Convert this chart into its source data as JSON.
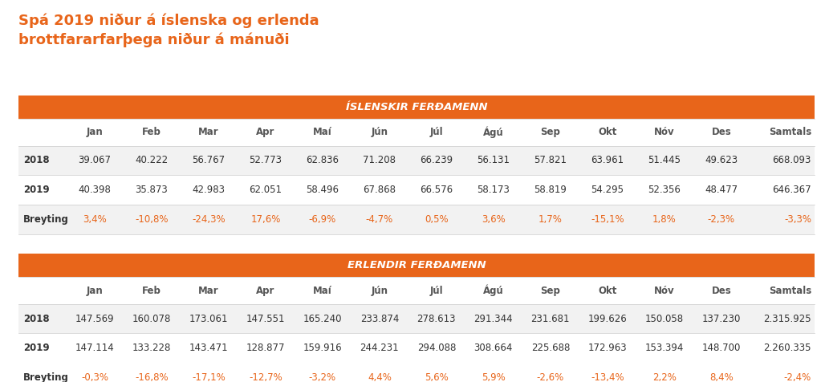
{
  "title_line1": "Spá 2019 niður á íslenska og erlenda",
  "title_line2": "brottfararfarþega niður á mánuði",
  "title_color": "#E8651A",
  "section1_header": "ÍSLENSKIR FERÐAMENN",
  "section2_header": "ERLENDIR FERÐAMENN",
  "header_bg": "#E8651A",
  "header_text_color": "#ffffff",
  "columns": [
    "",
    "Jan",
    "Feb",
    "Mar",
    "Apr",
    "Maí",
    "Jún",
    "Júl",
    "Ágú",
    "Sep",
    "Okt",
    "Nóv",
    "Des",
    "Samtals"
  ],
  "isl_2018": [
    "2018",
    "39.067",
    "40.222",
    "56.767",
    "52.773",
    "62.836",
    "71.208",
    "66.239",
    "56.131",
    "57.821",
    "63.961",
    "51.445",
    "49.623",
    "668.093"
  ],
  "isl_2019": [
    "2019",
    "40.398",
    "35.873",
    "42.983",
    "62.051",
    "58.496",
    "67.868",
    "66.576",
    "58.173",
    "58.819",
    "54.295",
    "52.356",
    "48.477",
    "646.367"
  ],
  "isl_breyting": [
    "Breyting",
    "3,4%",
    "-10,8%",
    "-24,3%",
    "17,6%",
    "-6,9%",
    "-4,7%",
    "0,5%",
    "3,6%",
    "1,7%",
    "-15,1%",
    "1,8%",
    "-2,3%",
    "-3,3%"
  ],
  "erl_2018": [
    "2018",
    "147.569",
    "160.078",
    "173.061",
    "147.551",
    "165.240",
    "233.874",
    "278.613",
    "291.344",
    "231.681",
    "199.626",
    "150.058",
    "137.230",
    "2.315.925"
  ],
  "erl_2019": [
    "2019",
    "147.114",
    "133.228",
    "143.471",
    "128.877",
    "159.916",
    "244.231",
    "294.088",
    "308.664",
    "225.688",
    "172.963",
    "153.394",
    "148.700",
    "2.260.335"
  ],
  "erl_breyting": [
    "Breyting",
    "-0,3%",
    "-16,8%",
    "-17,1%",
    "-12,7%",
    "-3,2%",
    "4,4%",
    "5,6%",
    "5,9%",
    "-2,6%",
    "-13,4%",
    "2,2%",
    "8,4%",
    "-2,4%"
  ],
  "row_bg_even": "#f2f2f2",
  "row_bg_odd": "#ffffff",
  "row_label_bold_color": "#333333",
  "breyting_color": "#E8651A",
  "font_size_data": 8.5,
  "font_size_header": 9.5,
  "font_size_title": 13,
  "font_size_col_header": 8.5,
  "background_color": "#ffffff"
}
